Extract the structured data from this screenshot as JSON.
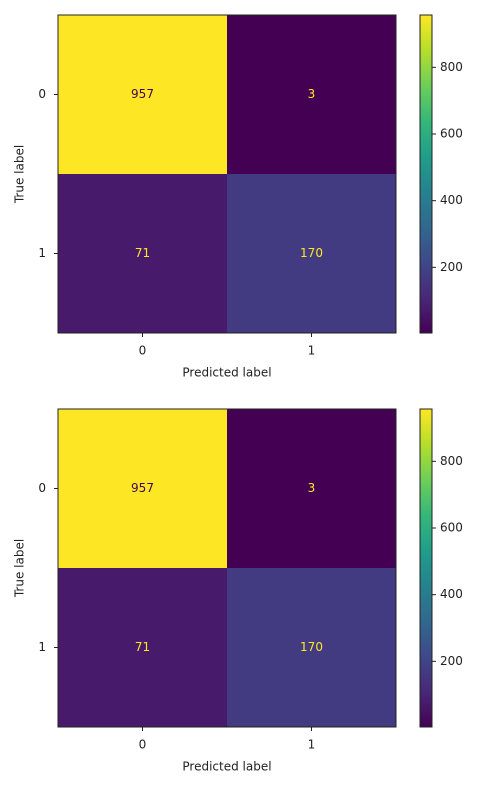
{
  "chart_data": [
    {
      "type": "heatmap",
      "xlabel": "Predicted label",
      "ylabel": "True label",
      "categories": [
        "0",
        "1"
      ],
      "y_categories": [
        "0",
        "1"
      ],
      "values": [
        [
          957,
          3
        ],
        [
          71,
          170
        ]
      ],
      "colormap": "viridis",
      "clim": [
        3,
        957
      ],
      "colorbar_ticks": [
        200,
        400,
        600,
        800
      ]
    },
    {
      "type": "heatmap",
      "xlabel": "Predicted label",
      "ylabel": "True label",
      "categories": [
        "0",
        "1"
      ],
      "y_categories": [
        "0",
        "1"
      ],
      "values": [
        [
          957,
          3
        ],
        [
          71,
          170
        ]
      ],
      "colormap": "viridis",
      "clim": [
        3,
        957
      ],
      "colorbar_ticks": [
        200,
        400,
        600,
        800
      ]
    }
  ]
}
